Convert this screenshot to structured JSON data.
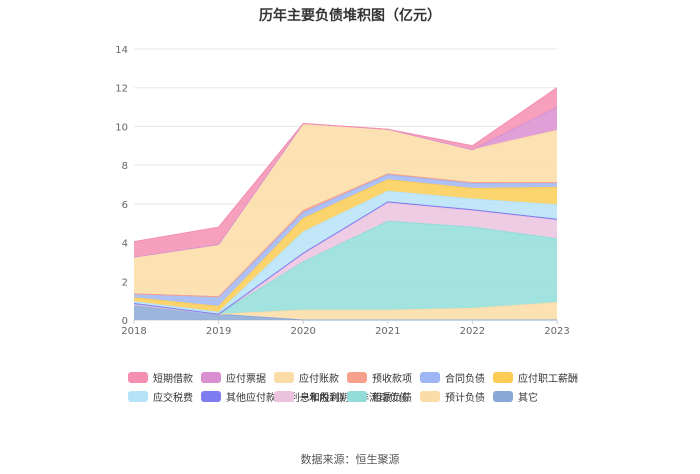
{
  "title": "历年主要负债堆积图（亿元）",
  "source": "数据来源：恒生聚源",
  "chart_data": {
    "type": "area",
    "stacked": true,
    "x": [
      "2018",
      "2019",
      "2020",
      "2021",
      "2022",
      "2023"
    ],
    "ylim": [
      0,
      14
    ],
    "yticks": [
      0,
      2,
      4,
      6,
      8,
      10,
      12,
      14
    ],
    "grid": true,
    "legend_position": "bottom",
    "series": [
      {
        "name": "短期借款",
        "color": "#f48fb1",
        "values": [
          0.8,
          0.9,
          0.0,
          0.0,
          0.2,
          1.0
        ]
      },
      {
        "name": "应付票据",
        "color": "#da8fd0",
        "values": [
          0.0,
          0.0,
          0.0,
          0.0,
          0.0,
          1.2
        ]
      },
      {
        "name": "应付账款",
        "color": "#fcdca6",
        "values": [
          1.9,
          2.7,
          4.5,
          2.3,
          1.7,
          2.7
        ]
      },
      {
        "name": "预收款项",
        "color": "#f7a08c",
        "values": [
          0.0,
          0.0,
          0.1,
          0.05,
          0.05,
          0.0
        ]
      },
      {
        "name": "合同负债",
        "color": "#9fb6f6",
        "values": [
          0.2,
          0.5,
          0.3,
          0.25,
          0.25,
          0.25
        ]
      },
      {
        "name": "应付职工薪酬",
        "color": "#fccc55",
        "values": [
          0.2,
          0.3,
          0.7,
          0.6,
          0.55,
          0.9
        ]
      },
      {
        "name": "应交税费",
        "color": "#b6e3f8",
        "values": [
          0.1,
          0.1,
          1.1,
          0.55,
          0.55,
          0.75
        ]
      },
      {
        "name": "其他应付款(含利息和股利)",
        "color": "#7f7cf0",
        "values": [
          0.05,
          0.0,
          0.05,
          0.05,
          0.05,
          0.05
        ]
      },
      {
        "name": "一年内到期的非流动负债",
        "color": "#ebc3df",
        "values": [
          0.0,
          0.0,
          0.4,
          0.95,
          0.85,
          0.95
        ]
      },
      {
        "name": "租赁负债",
        "color": "#92ddd9",
        "values": [
          0.0,
          0.0,
          2.5,
          4.6,
          4.2,
          3.3
        ]
      },
      {
        "name": "预计负债",
        "color": "#fcdca6",
        "values": [
          0.0,
          0.0,
          0.5,
          0.5,
          0.6,
          0.9
        ]
      },
      {
        "name": "其它",
        "color": "#8aa8d6",
        "values": [
          0.8,
          0.3,
          0.0,
          0.0,
          0.0,
          0.0
        ]
      }
    ]
  }
}
